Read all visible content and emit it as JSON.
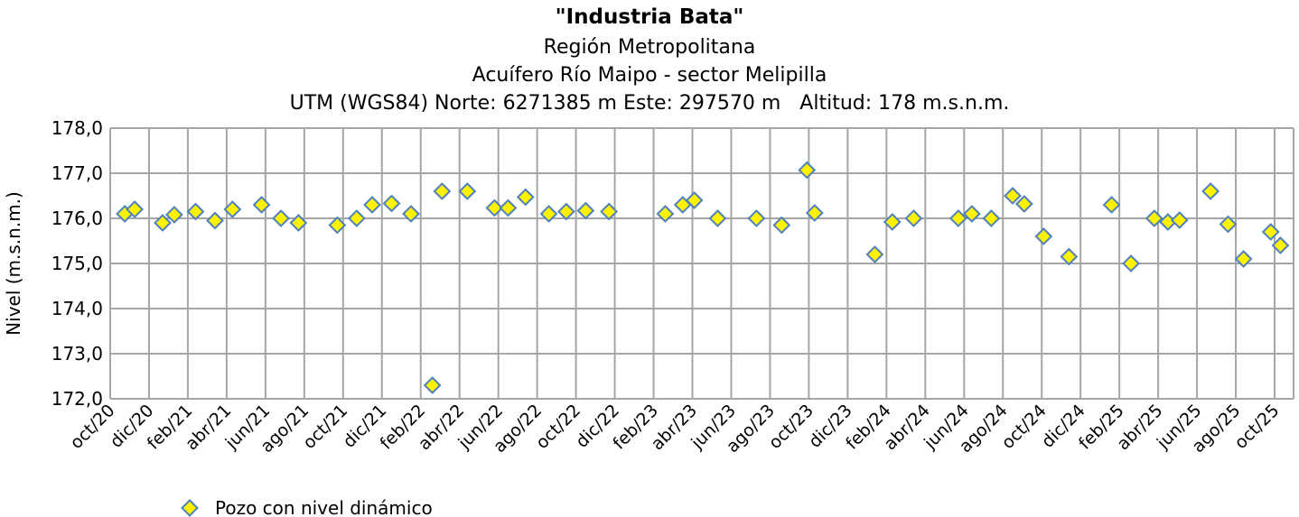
{
  "chart_data": {
    "type": "scatter",
    "title": "\"Industria Bata\"",
    "subtitles": [
      "Región Metropolitana",
      "Acuífero Río Maipo - sector Melipilla",
      "UTM (WGS84) Norte: 6271385 m Este: 297570 m   Altitud: 178 m.s.n.m."
    ],
    "ylabel": "Nivel (m.s.n.m.)",
    "xlabel": "",
    "ylim": [
      172,
      178
    ],
    "yticks": [
      "172,0",
      "173,0",
      "174,0",
      "175,0",
      "176,0",
      "177,0",
      "178,0"
    ],
    "x_unit": "months since oct/20",
    "xlim": [
      0,
      61
    ],
    "xticks": [
      "oct/20",
      "dic/20",
      "feb/21",
      "abr/21",
      "jun/21",
      "ago/21",
      "oct/21",
      "dic/21",
      "feb/22",
      "abr/22",
      "jun/22",
      "ago/22",
      "oct/22",
      "dic/22",
      "feb/23",
      "abr/23",
      "jun/23",
      "ago/23",
      "oct/23",
      "dic/23",
      "feb/24",
      "abr/24",
      "jun/24",
      "ago/24",
      "oct/24",
      "dic/24",
      "feb/25",
      "abr/25",
      "jun/25",
      "ago/25",
      "oct/25"
    ],
    "grid": true,
    "legend": "bottom-left",
    "series": [
      {
        "name": "Pozo con nivel dinámico",
        "color": "#FFF200",
        "edge": "#4F81BD",
        "x": [
          0.75,
          1.26,
          2.7,
          3.3,
          4.4,
          5.4,
          6.3,
          7.8,
          8.8,
          9.7,
          11.7,
          12.7,
          13.5,
          14.5,
          15.5,
          16.6,
          17.1,
          18.4,
          19.8,
          20.5,
          21.4,
          22.6,
          23.5,
          24.5,
          25.7,
          28.6,
          29.5,
          30.1,
          31.3,
          33.3,
          34.6,
          35.9,
          36.3,
          39.4,
          40.3,
          41.4,
          43.7,
          44.4,
          45.4,
          46.5,
          47.1,
          48.1,
          49.4,
          51.6,
          52.6,
          53.8,
          54.5,
          55.1,
          56.7,
          57.6,
          58.4,
          59.8,
          60.3
        ],
        "y": [
          176.1,
          176.2,
          175.9,
          176.08,
          176.15,
          175.95,
          176.2,
          176.3,
          176.0,
          175.9,
          175.85,
          176.0,
          176.3,
          176.33,
          176.1,
          172.3,
          176.6,
          176.6,
          176.23,
          176.23,
          176.47,
          176.1,
          176.15,
          176.17,
          176.15,
          176.1,
          176.3,
          176.4,
          176.0,
          176.0,
          175.85,
          177.07,
          176.12,
          175.2,
          175.92,
          176.0,
          176.0,
          176.1,
          176.0,
          176.5,
          176.32,
          175.6,
          175.15,
          176.3,
          175.0,
          176.0,
          175.92,
          175.96,
          176.6,
          175.87,
          175.1,
          175.7,
          175.4
        ]
      }
    ]
  }
}
